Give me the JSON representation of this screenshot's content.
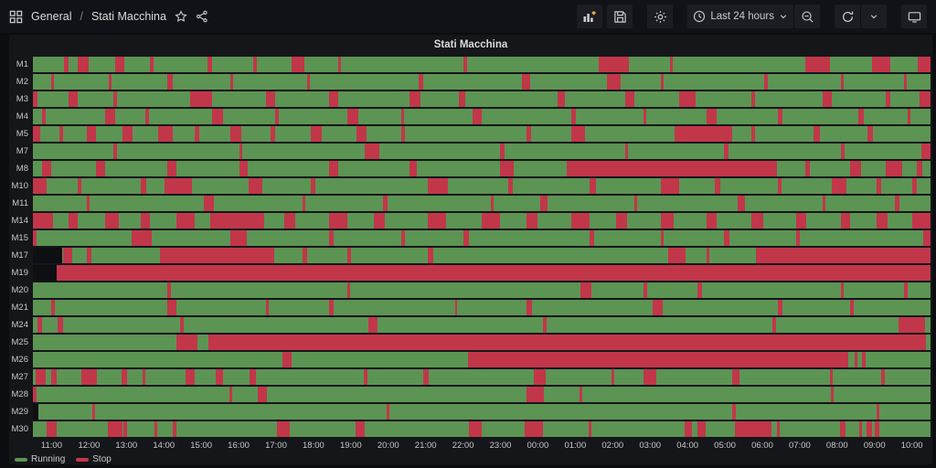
{
  "nav": {
    "breadcrumb": {
      "section": "General",
      "separator": "/",
      "title": "Stati Macchina"
    },
    "time_range": {
      "label": "Last 24 hours"
    }
  },
  "panel": {
    "title": "Stati Macchina"
  },
  "chart_data": {
    "type": "heatmap",
    "subtype": "state-timeline",
    "title": "Stati Macchina",
    "time_window": "Last 24 hours",
    "x_ticks": [
      "11:00",
      "12:00",
      "13:00",
      "14:00",
      "15:00",
      "16:00",
      "17:00",
      "18:00",
      "19:00",
      "20:00",
      "21:00",
      "22:00",
      "23:00",
      "00:00",
      "01:00",
      "02:00",
      "03:00",
      "04:00",
      "05:00",
      "06:00",
      "07:00",
      "08:00",
      "09:00",
      "10:00"
    ],
    "legend": [
      {
        "label": "Running",
        "color": "#5c9453"
      },
      {
        "label": "Stop",
        "color": "#c2364a"
      }
    ],
    "colors": {
      "running": "#5c9453",
      "stop": "#c2364a",
      "nodata": "#0e0f13"
    },
    "legend_position": "bottom-left",
    "note": "stop/nodata segments are [start_percent, width_percent] of the 24h window starting at 11:00; background of each row is the running state",
    "machines": [
      {
        "label": "M1",
        "stop": [
          [
            3.5,
            0.5
          ],
          [
            5.0,
            1.2
          ],
          [
            9.2,
            1.0
          ],
          [
            13.0,
            0.4
          ],
          [
            19.5,
            0.5
          ],
          [
            24.5,
            0.4
          ],
          [
            28.8,
            1.4
          ],
          [
            34.0,
            0.3
          ],
          [
            48.0,
            0.4
          ],
          [
            63.0,
            3.4
          ],
          [
            71.0,
            0.3
          ],
          [
            86.0,
            2.8
          ],
          [
            93.5,
            2.0
          ],
          [
            98.6,
            1.4
          ]
        ],
        "nodata": []
      },
      {
        "label": "M2",
        "stop": [
          [
            2.0,
            0.3
          ],
          [
            8.5,
            0.3
          ],
          [
            15.0,
            0.6
          ],
          [
            22.0,
            0.3
          ],
          [
            30.5,
            0.4
          ],
          [
            43.0,
            0.5
          ],
          [
            54.5,
            0.9
          ],
          [
            64.0,
            1.5
          ],
          [
            70.0,
            0.3
          ],
          [
            81.5,
            0.4
          ],
          [
            90.0,
            0.3
          ],
          [
            97.0,
            0.4
          ]
        ],
        "nodata": []
      },
      {
        "label": "M3",
        "stop": [
          [
            0.0,
            0.5
          ],
          [
            4.0,
            1.0
          ],
          [
            9.0,
            0.4
          ],
          [
            17.5,
            2.5
          ],
          [
            26.0,
            1.0
          ],
          [
            33.0,
            1.0
          ],
          [
            42.0,
            1.2
          ],
          [
            47.5,
            0.7
          ],
          [
            58.5,
            0.8
          ],
          [
            66.0,
            1.0
          ],
          [
            72.0,
            1.8
          ],
          [
            80.0,
            0.4
          ],
          [
            88.0,
            1.0
          ],
          [
            95.0,
            0.5
          ],
          [
            98.8,
            1.2
          ]
        ],
        "nodata": []
      },
      {
        "label": "M4",
        "stop": [
          [
            1.0,
            0.4
          ],
          [
            8.0,
            1.2
          ],
          [
            12.5,
            0.4
          ],
          [
            20.0,
            1.2
          ],
          [
            27.0,
            0.4
          ],
          [
            35.0,
            1.3
          ],
          [
            41.0,
            0.3
          ],
          [
            49.0,
            1.0
          ],
          [
            60.0,
            0.5
          ],
          [
            68.0,
            0.3
          ],
          [
            75.0,
            1.2
          ],
          [
            83.0,
            0.5
          ],
          [
            92.0,
            0.6
          ],
          [
            97.5,
            0.3
          ]
        ],
        "nodata": []
      },
      {
        "label": "M5",
        "stop": [
          [
            0.0,
            0.8
          ],
          [
            3.0,
            0.4
          ],
          [
            6.0,
            1.0
          ],
          [
            10.0,
            1.1
          ],
          [
            14.0,
            1.6
          ],
          [
            18.0,
            0.5
          ],
          [
            22.0,
            1.2
          ],
          [
            26.5,
            0.5
          ],
          [
            31.0,
            1.2
          ],
          [
            36.0,
            1.2
          ],
          [
            41.0,
            0.4
          ],
          [
            55.0,
            0.5
          ],
          [
            60.0,
            1.5
          ],
          [
            71.5,
            6.4
          ],
          [
            80.0,
            0.4
          ],
          [
            87.0,
            0.7
          ],
          [
            93.0,
            0.6
          ]
        ],
        "nodata": []
      },
      {
        "label": "M7",
        "stop": [
          [
            9.0,
            0.4
          ],
          [
            23.0,
            0.3
          ],
          [
            37.0,
            1.6
          ],
          [
            52.0,
            0.5
          ],
          [
            66.0,
            0.3
          ],
          [
            77.0,
            0.5
          ],
          [
            90.0,
            0.4
          ],
          [
            99.0,
            1.0
          ]
        ],
        "nodata": []
      },
      {
        "label": "M8",
        "stop": [
          [
            1.0,
            1.0
          ],
          [
            7.0,
            1.0
          ],
          [
            15.0,
            1.0
          ],
          [
            23.0,
            0.9
          ],
          [
            33.0,
            1.0
          ],
          [
            42.0,
            0.8
          ],
          [
            52.0,
            1.6
          ],
          [
            59.5,
            23.4
          ],
          [
            86.0,
            0.6
          ],
          [
            91.0,
            1.3
          ],
          [
            95.0,
            1.8
          ],
          [
            98.5,
            0.6
          ]
        ],
        "nodata": []
      },
      {
        "label": "M10",
        "stop": [
          [
            0.0,
            1.5
          ],
          [
            5.0,
            0.4
          ],
          [
            12.0,
            0.6
          ],
          [
            14.7,
            3.0
          ],
          [
            24.0,
            1.6
          ],
          [
            31.0,
            0.5
          ],
          [
            44.0,
            2.2
          ],
          [
            53.0,
            0.5
          ],
          [
            62.0,
            0.7
          ],
          [
            70.0,
            2.0
          ],
          [
            76.0,
            0.6
          ],
          [
            83.0,
            0.4
          ],
          [
            89.0,
            1.6
          ],
          [
            94.0,
            0.5
          ],
          [
            98.0,
            0.5
          ]
        ],
        "nodata": []
      },
      {
        "label": "M11",
        "stop": [
          [
            6.0,
            0.3
          ],
          [
            19.0,
            1.2
          ],
          [
            30.0,
            0.3
          ],
          [
            39.0,
            0.5
          ],
          [
            51.0,
            0.3
          ],
          [
            56.5,
            0.8
          ],
          [
            67.0,
            0.3
          ],
          [
            78.5,
            0.8
          ],
          [
            88.0,
            0.3
          ],
          [
            96.0,
            0.5
          ]
        ],
        "nodata": []
      },
      {
        "label": "M14",
        "stop": [
          [
            0.0,
            2.2
          ],
          [
            4.0,
            1.0
          ],
          [
            8.0,
            1.6
          ],
          [
            12.0,
            1.0
          ],
          [
            16.0,
            2.0
          ],
          [
            19.8,
            6.0
          ],
          [
            28.0,
            1.2
          ],
          [
            33.0,
            2.0
          ],
          [
            38.0,
            1.2
          ],
          [
            44.0,
            2.0
          ],
          [
            50.0,
            2.0
          ],
          [
            55.0,
            1.2
          ],
          [
            60.0,
            2.0
          ],
          [
            65.0,
            1.2
          ],
          [
            70.0,
            1.4
          ],
          [
            75.0,
            1.2
          ],
          [
            80.0,
            1.4
          ],
          [
            85.0,
            1.2
          ],
          [
            90.0,
            1.0
          ],
          [
            94.0,
            1.2
          ],
          [
            98.0,
            2.0
          ]
        ],
        "nodata": []
      },
      {
        "label": "M15",
        "stop": [
          [
            0.0,
            0.4
          ],
          [
            11.0,
            2.2
          ],
          [
            22.0,
            1.8
          ],
          [
            33.0,
            0.5
          ],
          [
            41.0,
            0.4
          ],
          [
            48.0,
            0.6
          ],
          [
            62.0,
            0.5
          ],
          [
            70.0,
            0.3
          ],
          [
            77.0,
            0.6
          ],
          [
            85.0,
            0.4
          ],
          [
            99.2,
            0.8
          ]
        ],
        "nodata": []
      },
      {
        "label": "M17",
        "stop": [
          [
            3.4,
            1.0
          ],
          [
            6.0,
            0.5
          ],
          [
            14.2,
            12.7
          ],
          [
            30.0,
            0.5
          ],
          [
            35.0,
            0.4
          ],
          [
            44.0,
            0.6
          ],
          [
            70.8,
            1.9
          ],
          [
            75.0,
            0.4
          ],
          [
            80.5,
            19.5
          ]
        ],
        "nodata": [
          [
            0.0,
            3.3
          ]
        ]
      },
      {
        "label": "M19",
        "stop": [
          [
            2.6,
            97.4
          ]
        ],
        "nodata": [
          [
            0.0,
            2.6
          ]
        ]
      },
      {
        "label": "M20",
        "stop": [
          [
            15.0,
            0.4
          ],
          [
            35.0,
            0.3
          ],
          [
            61.0,
            1.2
          ],
          [
            68.0,
            0.4
          ],
          [
            74.0,
            0.5
          ],
          [
            90.0,
            0.3
          ],
          [
            97.0,
            0.5
          ]
        ],
        "nodata": []
      },
      {
        "label": "M21",
        "stop": [
          [
            2.0,
            0.4
          ],
          [
            15.0,
            1.0
          ],
          [
            26.0,
            0.3
          ],
          [
            33.0,
            0.5
          ],
          [
            47.0,
            0.3
          ],
          [
            55.0,
            0.6
          ],
          [
            69.0,
            1.2
          ],
          [
            83.0,
            0.5
          ],
          [
            91.0,
            0.4
          ]
        ],
        "nodata": []
      },
      {
        "label": "M24",
        "stop": [
          [
            0.5,
            0.5
          ],
          [
            2.8,
            0.6
          ],
          [
            16.4,
            0.4
          ],
          [
            37.4,
            1.0
          ],
          [
            56.8,
            0.4
          ],
          [
            82.4,
            0.4
          ],
          [
            96.4,
            3.0
          ]
        ],
        "nodata": []
      },
      {
        "label": "M25",
        "stop": [
          [
            16.0,
            2.3
          ],
          [
            19.6,
            79.9
          ]
        ],
        "nodata": []
      },
      {
        "label": "M26",
        "stop": [
          [
            27.8,
            1.0
          ],
          [
            48.5,
            42.3
          ],
          [
            91.5,
            0.4
          ],
          [
            92.4,
            0.4
          ]
        ],
        "nodata": []
      },
      {
        "label": "M27",
        "stop": [
          [
            0.3,
            1.1
          ],
          [
            2.0,
            0.6
          ],
          [
            5.4,
            1.7
          ],
          [
            9.9,
            0.6
          ],
          [
            12.2,
            0.3
          ],
          [
            17.0,
            1.0
          ],
          [
            20.4,
            0.8
          ],
          [
            24.1,
            0.7
          ],
          [
            36.9,
            0.4
          ],
          [
            43.5,
            0.6
          ],
          [
            55.8,
            1.3
          ],
          [
            64.5,
            0.3
          ],
          [
            68.0,
            1.5
          ],
          [
            77.9,
            0.8
          ],
          [
            88.8,
            0.3
          ],
          [
            94.5,
            0.4
          ]
        ],
        "nodata": []
      },
      {
        "label": "M28",
        "stop": [
          [
            0.0,
            0.4
          ],
          [
            21.9,
            0.3
          ],
          [
            25.1,
            1.0
          ],
          [
            55.0,
            1.9
          ],
          [
            60.9,
            0.3
          ],
          [
            88.9,
            0.3
          ]
        ],
        "nodata": []
      },
      {
        "label": "M29",
        "stop": [
          [
            6.6,
            0.3
          ],
          [
            39.4,
            0.3
          ],
          [
            77.9,
            0.4
          ],
          [
            94.0,
            0.3
          ]
        ],
        "nodata": [
          [
            0.0,
            0.6
          ]
        ]
      },
      {
        "label": "M30",
        "stop": [
          [
            1.5,
            1.1
          ],
          [
            8.3,
            1.7
          ],
          [
            10.1,
            0.4
          ],
          [
            13.5,
            0.3
          ],
          [
            15.6,
            0.4
          ],
          [
            27.2,
            1.4
          ],
          [
            35.9,
            1.1
          ],
          [
            48.6,
            1.4
          ],
          [
            54.8,
            2.0
          ],
          [
            61.9,
            0.3
          ],
          [
            72.6,
            0.8
          ],
          [
            74.0,
            1.0
          ],
          [
            78.2,
            4.1
          ],
          [
            82.9,
            0.3
          ],
          [
            89.9,
            0.6
          ],
          [
            92.1,
            0.3
          ],
          [
            92.9,
            0.6
          ],
          [
            93.8,
            0.5
          ]
        ],
        "nodata": []
      }
    ]
  }
}
